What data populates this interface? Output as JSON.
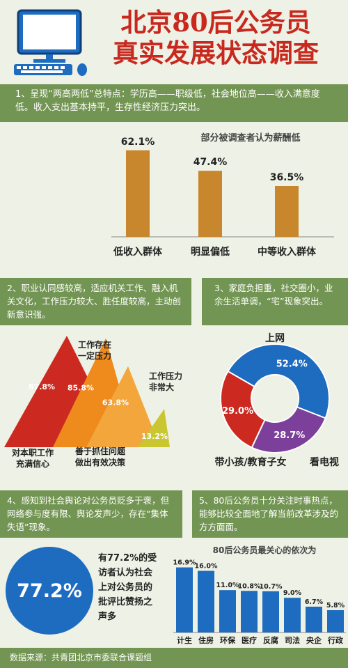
{
  "title": {
    "line1": "北京80后公务员",
    "line2": "真实发展状态调查"
  },
  "sections": {
    "s1": "1、呈现“两高两低”总特点：学历高——职级低，社会地位高——收入满意度低。收入支出基本持平，生存性经济压力突出。",
    "s2": "2、职业认同感较高，适应机关工作、融入机关文化，工作压力较大、胜任度较高，主动创新意识强。",
    "s3": "3、家庭负担重，社交圈小，业余生活单调，“宅”现象突出。",
    "s4": "4、感知到社会舆论对公务员贬多于褒，但网络参与度有限、舆论发声少，存在“集体失语”现象。",
    "s5": "5、80后公务员十分关注时事热点，能够比较全面地了解当前改革涉及的方方面面。"
  },
  "chart_data": [
    {
      "type": "bar",
      "title": "部分被调查者认为薪酬低",
      "categories": [
        "低收入群体",
        "明显偏低",
        "中等收入群体"
      ],
      "values": [
        62.1,
        47.4,
        36.5
      ],
      "labels": [
        "62.1%",
        "47.4%",
        "36.5%"
      ],
      "color": "#c8862d"
    },
    {
      "type": "bar",
      "categories": [
        "对本职工作充满信心",
        "工作存在一定压力",
        "善于抓住问题做出有效决策",
        "工作压力非常大"
      ],
      "values": [
        87.8,
        85.8,
        63.8,
        13.2
      ],
      "labels": [
        "87.8%",
        "85.8%",
        "63.8%",
        "13.2%"
      ],
      "colors": [
        "#cc2a21",
        "#ef8a1c",
        "#f3a63c",
        "#c9c632"
      ]
    },
    {
      "type": "pie",
      "categories": [
        "上网",
        "带小孩/教育子女",
        "看电视"
      ],
      "values": [
        52.4,
        29.0,
        28.7
      ],
      "labels": [
        "52.4%",
        "29.0%",
        "28.7%"
      ],
      "colors": [
        "#1e6cc0",
        "#cc2a21",
        "#7c3f9a"
      ]
    },
    {
      "type": "pie",
      "title": "有77.2%的受访者认为社会上对公务员的批评比赞扬之声多",
      "values": [
        77.2
      ],
      "labels": [
        "77.2%"
      ],
      "color": "#1e6cc0"
    },
    {
      "type": "bar",
      "title": "80后公务员最关心的依次为",
      "categories": [
        "计生",
        "住房",
        "环保",
        "医疗",
        "反腐",
        "司法",
        "央企",
        "行政"
      ],
      "values": [
        16.9,
        16.0,
        11.0,
        10.8,
        10.7,
        9.0,
        6.7,
        5.8
      ],
      "labels": [
        "16.9%",
        "16.0%",
        "11.0%",
        "10.8%",
        "10.7%",
        "9.0%",
        "6.7%",
        "5.8%"
      ],
      "color": "#1e6cc0"
    }
  ],
  "text": {
    "tri_label_a": "工作存在\n一定压力",
    "tri_label_b": "工作压力\n非常大",
    "tri_label_c": "对本职工作\n充满信心",
    "tri_label_d": "善于抓住问题\n做出有效决策",
    "stat_text": "有77.2%的受\n访者认为社会\n上对公务员的\n批评比赞扬之\n声多"
  },
  "footer": "数据来源：共青团北京市委联合课题组",
  "colors": {
    "red": "#c8281d",
    "green": "#739553",
    "blue": "#1e6cc0",
    "brown": "#c8862d"
  }
}
